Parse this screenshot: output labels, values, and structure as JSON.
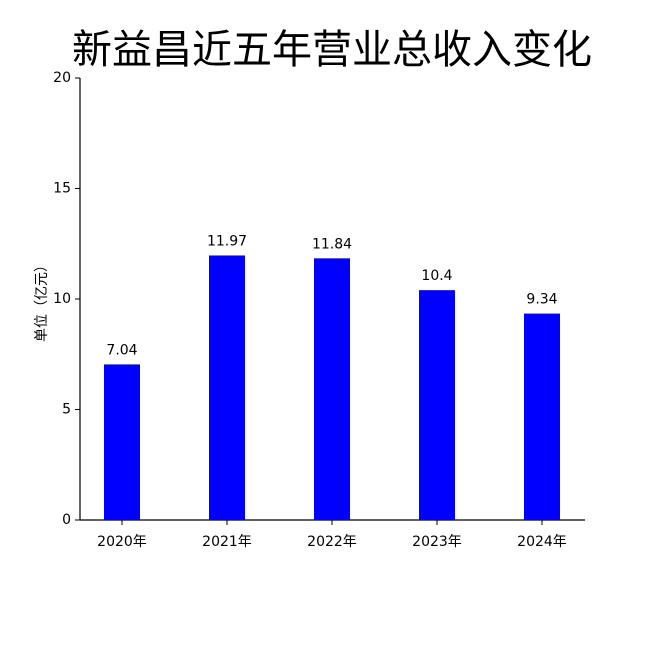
{
  "chart_data": {
    "type": "bar",
    "title": "新益昌近五年营业总收入变化",
    "y_label": "单位（亿元）",
    "categories": [
      "2020年",
      "2021年",
      "2022年",
      "2023年",
      "2024年"
    ],
    "values": [
      7.04,
      11.97,
      11.84,
      10.4,
      9.34
    ],
    "color": "#0000ff",
    "ylim": [
      0,
      20
    ],
    "yticks": [
      0,
      5,
      10,
      15,
      20
    ],
    "grid": false
  }
}
